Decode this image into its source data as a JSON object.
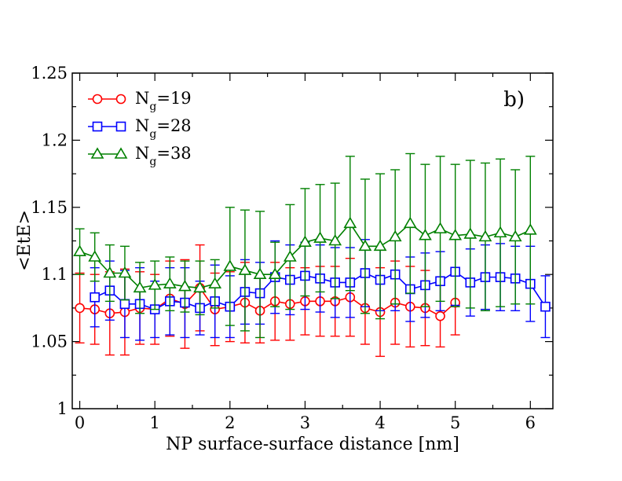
{
  "chart_data": {
    "type": "line",
    "title": "",
    "panel_label": "b)",
    "xlabel": "NP surface-surface distance [nm]",
    "ylabel": "<EtE>",
    "xlim": [
      -0.1,
      6.3
    ],
    "ylim": [
      1.0,
      1.25
    ],
    "xticks": [
      0,
      1,
      2,
      3,
      4,
      5,
      6
    ],
    "xtick_labels": [
      "0",
      "1",
      "2",
      "3",
      "4",
      "5",
      "6"
    ],
    "yticks": [
      1.0,
      1.05,
      1.1,
      1.15,
      1.2,
      1.25
    ],
    "ytick_labels": [
      "1",
      "1.05",
      "1.1",
      "1.15",
      "1.2",
      "1.25"
    ],
    "legend_position": "top-left",
    "series": [
      {
        "name": "Ng=19",
        "legend_main": "N",
        "legend_sub": "g",
        "legend_suffix": "=19",
        "color": "#ff0000",
        "marker": "circle",
        "x": [
          0,
          0.2,
          0.4,
          0.6,
          0.8,
          1.0,
          1.2,
          1.4,
          1.6,
          1.8,
          2.0,
          2.2,
          2.4,
          2.6,
          2.8,
          3.0,
          3.2,
          3.4,
          3.6,
          3.8,
          4.0,
          4.2,
          4.4,
          4.6,
          4.8,
          5.0
        ],
        "y": [
          1.075,
          1.074,
          1.071,
          1.072,
          1.075,
          1.074,
          1.082,
          1.078,
          1.09,
          1.074,
          1.076,
          1.079,
          1.073,
          1.08,
          1.078,
          1.08,
          1.08,
          1.08,
          1.083,
          1.075,
          1.072,
          1.079,
          1.076,
          1.075,
          1.069,
          1.079
        ],
        "err": [
          0.026,
          0.026,
          0.031,
          0.032,
          0.027,
          0.026,
          0.028,
          0.033,
          0.032,
          0.027,
          0.026,
          0.03,
          0.024,
          0.029,
          0.027,
          0.025,
          0.026,
          0.026,
          0.029,
          0.027,
          0.033,
          0.031,
          0.03,
          0.028,
          0.023,
          0.024
        ]
      },
      {
        "name": "Ng=28",
        "legend_main": "N",
        "legend_sub": "g",
        "legend_suffix": "=28",
        "color": "#0000ff",
        "marker": "square",
        "x": [
          0.2,
          0.4,
          0.6,
          0.8,
          1.0,
          1.2,
          1.4,
          1.6,
          1.8,
          2.0,
          2.2,
          2.4,
          2.6,
          2.8,
          3.0,
          3.2,
          3.4,
          3.6,
          3.8,
          4.0,
          4.2,
          4.4,
          4.6,
          4.8,
          5.0,
          5.2,
          5.4,
          5.6,
          5.8,
          6.0,
          6.2
        ],
        "y": [
          1.083,
          1.088,
          1.078,
          1.078,
          1.074,
          1.08,
          1.079,
          1.075,
          1.08,
          1.076,
          1.087,
          1.086,
          1.098,
          1.096,
          1.099,
          1.097,
          1.094,
          1.094,
          1.101,
          1.096,
          1.1,
          1.089,
          1.092,
          1.095,
          1.102,
          1.094,
          1.098,
          1.098,
          1.097,
          1.093,
          1.076
        ],
        "err": [
          0.022,
          0.022,
          0.025,
          0.027,
          0.021,
          0.025,
          0.026,
          0.02,
          0.027,
          0.023,
          0.024,
          0.023,
          0.027,
          0.026,
          0.025,
          0.025,
          0.026,
          0.026,
          0.025,
          0.023,
          0.027,
          0.024,
          0.024,
          0.022,
          0.025,
          0.025,
          0.024,
          0.025,
          0.024,
          0.028,
          0.023
        ]
      },
      {
        "name": "Ng=38",
        "legend_main": "N",
        "legend_sub": "g",
        "legend_suffix": "=38",
        "color": "#008000",
        "marker": "triangle",
        "x": [
          0,
          0.2,
          0.4,
          0.6,
          0.8,
          1.0,
          1.2,
          1.4,
          1.6,
          1.8,
          2.0,
          2.2,
          2.4,
          2.6,
          2.8,
          3.0,
          3.2,
          3.4,
          3.6,
          3.8,
          4.0,
          4.2,
          4.4,
          4.6,
          4.8,
          5.0,
          5.2,
          5.4,
          5.6,
          5.8,
          6.0
        ],
        "y": [
          1.117,
          1.113,
          1.101,
          1.101,
          1.09,
          1.092,
          1.093,
          1.091,
          1.09,
          1.093,
          1.106,
          1.103,
          1.1,
          1.1,
          1.113,
          1.124,
          1.127,
          1.125,
          1.138,
          1.121,
          1.121,
          1.128,
          1.138,
          1.129,
          1.134,
          1.129,
          1.13,
          1.128,
          1.131,
          1.128,
          1.133
        ],
        "err": [
          0.017,
          0.018,
          0.021,
          0.02,
          0.019,
          0.018,
          0.02,
          0.019,
          0.02,
          0.018,
          0.044,
          0.045,
          0.047,
          0.024,
          0.039,
          0.04,
          0.04,
          0.043,
          0.05,
          0.05,
          0.054,
          0.05,
          0.052,
          0.053,
          0.054,
          0.053,
          0.055,
          0.055,
          0.055,
          0.05,
          0.055
        ]
      }
    ]
  }
}
